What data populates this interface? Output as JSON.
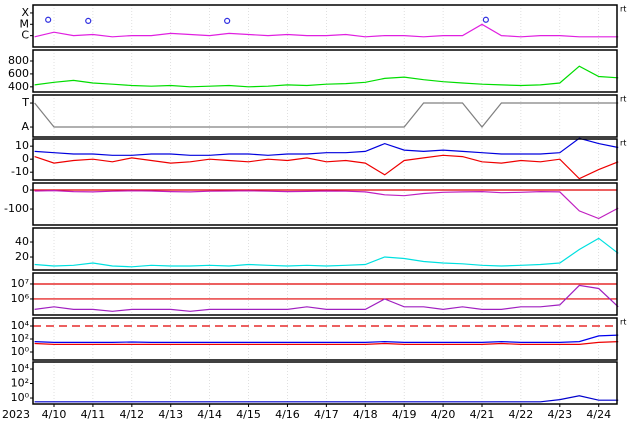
{
  "chart_data": [
    {
      "type": "line",
      "xlim": [
        9.46,
        24.47
      ],
      "ylim": [
        0,
        3.7
      ],
      "yticks": [
        {
          "value": 1,
          "label": "C"
        },
        {
          "value": 2,
          "label": "M"
        },
        {
          "value": 3,
          "label": "X"
        }
      ],
      "side_label": "rt",
      "x": [
        9.5,
        10,
        10.5,
        11,
        11.5,
        12,
        12.5,
        13,
        13.5,
        14,
        14.5,
        15,
        15.5,
        16,
        16.5,
        17,
        17.5,
        18,
        18.5,
        19,
        19.5,
        20,
        20.5,
        21,
        21.5,
        22,
        22.5,
        23,
        23.5,
        24,
        24.5
      ],
      "series": [
        {
          "color": "#e020e0",
          "values": [
            0.9,
            1.3,
            1.0,
            1.1,
            0.9,
            1.0,
            1.0,
            1.2,
            1.1,
            1.0,
            1.2,
            1.1,
            1.0,
            1.1,
            1.0,
            1.0,
            1.1,
            0.9,
            1.0,
            1.0,
            0.9,
            1.0,
            1.0,
            2.0,
            1.0,
            0.9,
            1.0,
            1.0,
            0.9,
            0.9,
            0.9
          ]
        }
      ],
      "flares": {
        "color": "#3030e0",
        "x": [
          9.85,
          10.88,
          14.45,
          21.1
        ],
        "values": [
          2.4,
          2.3,
          2.3,
          2.4
        ]
      }
    },
    {
      "type": "line",
      "xlim": [
        9.46,
        24.47
      ],
      "ylim": [
        320,
        970
      ],
      "yticks": [
        400,
        600,
        800
      ],
      "x": [
        9.5,
        10,
        10.5,
        11,
        11.5,
        12,
        12.5,
        13,
        13.5,
        14,
        14.5,
        15,
        15.5,
        16,
        16.5,
        17,
        17.5,
        18,
        18.5,
        19,
        19.5,
        20,
        20.5,
        21,
        21.5,
        22,
        22.5,
        23,
        23.5,
        24,
        24.5
      ],
      "series": [
        {
          "color": "#00dd00",
          "values": [
            430,
            470,
            500,
            460,
            440,
            420,
            410,
            420,
            400,
            410,
            420,
            400,
            410,
            430,
            420,
            440,
            450,
            470,
            530,
            550,
            510,
            480,
            460,
            440,
            430,
            420,
            430,
            460,
            720,
            560,
            540
          ]
        }
      ]
    },
    {
      "type": "line",
      "xlim": [
        9.46,
        24.47
      ],
      "ylim": [
        -1.83,
        1.67
      ],
      "yticks": [
        {
          "value": -1,
          "label": "A"
        },
        {
          "value": 1,
          "label": "T"
        }
      ],
      "side_label": "rt",
      "x": [
        9.5,
        10,
        10.5,
        11,
        11.5,
        12,
        12.5,
        13,
        13.5,
        14,
        14.5,
        15,
        15.5,
        16,
        16.5,
        17,
        17.5,
        18,
        18.5,
        19,
        19.5,
        20,
        20.5,
        21,
        21.5,
        22,
        22.5,
        23,
        23.5,
        24,
        24.5
      ],
      "series": [
        {
          "color": "#808080",
          "values": [
            1,
            -1,
            -1,
            -1,
            -1,
            -1,
            -1,
            -1,
            -1,
            -1,
            -1,
            -1,
            -1,
            -1,
            -1,
            -1,
            -1,
            -1,
            -1,
            -1,
            1,
            1,
            1,
            -1,
            1,
            1,
            1,
            1,
            1,
            1,
            1
          ]
        }
      ]
    },
    {
      "type": "line",
      "xlim": [
        9.46,
        24.47
      ],
      "ylim": [
        -16,
        15.5
      ],
      "yticks": [
        -10,
        0,
        10
      ],
      "side_label": "rt",
      "x": [
        9.5,
        10,
        10.5,
        11,
        11.5,
        12,
        12.5,
        13,
        13.5,
        14,
        14.5,
        15,
        15.5,
        16,
        16.5,
        17,
        17.5,
        18,
        18.5,
        19,
        19.5,
        20,
        20.5,
        21,
        21.5,
        22,
        22.5,
        23,
        23.5,
        24,
        24.5
      ],
      "series": [
        {
          "color": "#0000dd",
          "values": [
            6,
            5,
            4,
            4,
            3,
            3,
            4,
            4,
            3,
            3,
            4,
            4,
            3,
            4,
            4,
            5,
            5,
            6,
            12,
            7,
            6,
            7,
            6,
            5,
            4,
            4,
            4,
            5,
            16,
            12,
            9
          ]
        },
        {
          "color": "#ee0000",
          "values": [
            2,
            -3,
            -1,
            0,
            -2,
            1,
            -1,
            -3,
            -2,
            0,
            -1,
            -2,
            0,
            -1,
            1,
            -2,
            -1,
            -3,
            -12,
            -1,
            1,
            3,
            2,
            -2,
            -3,
            -1,
            -2,
            0,
            -15,
            -8,
            -2
          ]
        }
      ]
    },
    {
      "type": "line",
      "xlim": [
        9.46,
        24.47
      ],
      "ylim": [
        -184,
        37
      ],
      "yticks": [
        -100,
        0
      ],
      "ref_lines": [
        {
          "value": 0,
          "color": "#e00000"
        }
      ],
      "x": [
        9.5,
        10,
        10.5,
        11,
        11.5,
        12,
        12.5,
        13,
        13.5,
        14,
        14.5,
        15,
        15.5,
        16,
        16.5,
        17,
        17.5,
        18,
        18.5,
        19,
        19.5,
        20,
        20.5,
        21,
        21.5,
        22,
        22.5,
        23,
        23.5,
        24,
        24.5
      ],
      "series": [
        {
          "color": "#c020c0",
          "values": [
            -5,
            -3,
            -8,
            -10,
            -6,
            -4,
            -5,
            -8,
            -10,
            -6,
            -5,
            -4,
            -6,
            -8,
            -7,
            -5,
            -6,
            -10,
            -25,
            -30,
            -18,
            -12,
            -10,
            -8,
            -14,
            -12,
            -8,
            -10,
            -110,
            -150,
            -95
          ]
        }
      ]
    },
    {
      "type": "line",
      "xlim": [
        9.46,
        24.47
      ],
      "ylim": [
        2.7,
        58.7
      ],
      "yticks": [
        20,
        40
      ],
      "x": [
        9.5,
        10,
        10.5,
        11,
        11.5,
        12,
        12.5,
        13,
        13.5,
        14,
        14.5,
        15,
        15.5,
        16,
        16.5,
        17,
        17.5,
        18,
        18.5,
        19,
        19.5,
        20,
        20.5,
        21,
        21.5,
        22,
        22.5,
        23,
        23.5,
        24,
        24.5
      ],
      "series": [
        {
          "color": "#00e0e0",
          "values": [
            10,
            8,
            9,
            12,
            8,
            7,
            9,
            8,
            8,
            9,
            8,
            10,
            9,
            8,
            9,
            8,
            9,
            10,
            20,
            18,
            14,
            12,
            11,
            9,
            8,
            9,
            10,
            12,
            30,
            45,
            25
          ]
        }
      ]
    },
    {
      "type": "line",
      "log": true,
      "xlim": [
        9.46,
        24.47
      ],
      "ylim": [
        85000,
        54000000
      ],
      "yticks": [
        {
          "value": 1000000,
          "label": "10⁶"
        },
        {
          "value": 10000000,
          "label": "10⁷"
        }
      ],
      "ref_lines": [
        {
          "value": 1000000,
          "color": "#e00000"
        },
        {
          "value": 10000000,
          "color": "#e00000"
        }
      ],
      "x": [
        9.5,
        10,
        10.5,
        11,
        11.5,
        12,
        12.5,
        13,
        13.5,
        14,
        14.5,
        15,
        15.5,
        16,
        16.5,
        17,
        17.5,
        18,
        18.5,
        19,
        19.5,
        20,
        20.5,
        21,
        21.5,
        22,
        22.5,
        23,
        23.5,
        24,
        24.5
      ],
      "series": [
        {
          "color": "#a020c0",
          "values": [
            200000,
            300000,
            200000,
            200000,
            150000,
            200000,
            200000,
            200000,
            150000,
            200000,
            200000,
            200000,
            200000,
            200000,
            300000,
            200000,
            200000,
            200000,
            1000000,
            300000,
            300000,
            200000,
            300000,
            200000,
            200000,
            300000,
            300000,
            400000,
            8000000,
            5000000,
            300000
          ]
        }
      ]
    },
    {
      "type": "line",
      "log": true,
      "xlim": [
        9.46,
        24.47
      ],
      "ylim": [
        0.059,
        170000
      ],
      "yticks": [
        {
          "value": 1,
          "label": "10⁰"
        },
        {
          "value": 100,
          "label": "10²"
        },
        {
          "value": 10000,
          "label": "10⁴"
        }
      ],
      "side_label": "rt",
      "ref_lines": [
        {
          "value": 10000,
          "color": "#e00000",
          "dash": true
        }
      ],
      "x": [
        9.5,
        10,
        10.5,
        11,
        11.5,
        12,
        12.5,
        13,
        13.5,
        14,
        14.5,
        15,
        15.5,
        16,
        16.5,
        17,
        17.5,
        18,
        18.5,
        19,
        19.5,
        20,
        20.5,
        21,
        21.5,
        22,
        22.5,
        23,
        23.5,
        24,
        24.5
      ],
      "series": [
        {
          "color": "#0000ee",
          "values": [
            40,
            30,
            30,
            30,
            30,
            35,
            30,
            30,
            30,
            30,
            30,
            30,
            30,
            30,
            30,
            30,
            30,
            30,
            40,
            30,
            30,
            30,
            30,
            30,
            40,
            30,
            30,
            30,
            40,
            300,
            400
          ]
        },
        {
          "color": "#ee0000",
          "values": [
            20,
            15,
            15,
            15,
            15,
            15,
            15,
            15,
            15,
            15,
            15,
            15,
            15,
            15,
            15,
            15,
            15,
            15,
            20,
            15,
            15,
            15,
            15,
            15,
            20,
            15,
            15,
            15,
            15,
            30,
            40
          ]
        }
      ]
    },
    {
      "type": "line",
      "log": true,
      "xlim": [
        9.46,
        24.47
      ],
      "ylim": [
        0.15,
        93000
      ],
      "yticks": [
        {
          "value": 1,
          "label": "10⁰"
        },
        {
          "value": 100,
          "label": "10²"
        },
        {
          "value": 10000,
          "label": "10⁴"
        }
      ],
      "x": [
        9.5,
        10,
        10.5,
        11,
        11.5,
        12,
        12.5,
        13,
        13.5,
        14,
        14.5,
        15,
        15.5,
        16,
        16.5,
        17,
        17.5,
        18,
        18.5,
        19,
        19.5,
        20,
        20.5,
        21,
        21.5,
        22,
        22.5,
        23,
        23.5,
        24,
        24.5
      ],
      "series": [
        {
          "color": "#0000cc",
          "values": [
            0.3,
            0.3,
            0.3,
            0.3,
            0.3,
            0.3,
            0.3,
            0.3,
            0.3,
            0.3,
            0.3,
            0.3,
            0.3,
            0.3,
            0.3,
            0.3,
            0.3,
            0.3,
            0.3,
            0.3,
            0.3,
            0.3,
            0.3,
            0.3,
            0.3,
            0.3,
            0.3,
            0.6,
            2,
            0.5,
            0.5
          ]
        }
      ],
      "year_label": "2023",
      "xticks": [
        {
          "value": 10,
          "label": "4/10"
        },
        {
          "value": 11,
          "label": "4/11"
        },
        {
          "value": 12,
          "label": "4/12"
        },
        {
          "value": 13,
          "label": "4/13"
        },
        {
          "value": 14,
          "label": "4/14"
        },
        {
          "value": 15,
          "label": "4/15"
        },
        {
          "value": 16,
          "label": "4/16"
        },
        {
          "value": 17,
          "label": "4/17"
        },
        {
          "value": 18,
          "label": "4/18"
        },
        {
          "value": 19,
          "label": "4/19"
        },
        {
          "value": 20,
          "label": "4/20"
        },
        {
          "value": 21,
          "label": "4/21"
        },
        {
          "value": 22,
          "label": "4/22"
        },
        {
          "value": 23,
          "label": "4/23"
        },
        {
          "value": 24,
          "label": "4/24"
        }
      ]
    }
  ]
}
